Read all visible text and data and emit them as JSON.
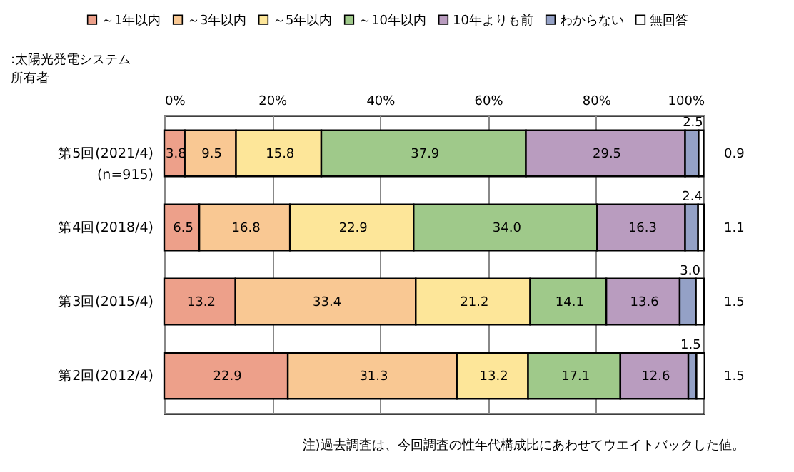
{
  "chart_data": {
    "type": "bar",
    "orientation": "horizontal",
    "stacked": true,
    "ylabel": ":太陽光発電システム所有者",
    "categories": [
      "第5回(2021/4)\n(n=915)",
      "第4回(2018/4)",
      "第3回(2015/4)",
      "第2回(2012/4)"
    ],
    "series": [
      {
        "name": "～1年以内",
        "color": "#eda08a",
        "values": [
          3.8,
          6.5,
          13.2,
          22.9
        ],
        "value_labels": [
          "3.8",
          "6.5",
          "13.2",
          "22.9"
        ]
      },
      {
        "name": "～3年以内",
        "color": "#f9c893",
        "values": [
          9.5,
          16.8,
          33.4,
          31.3
        ],
        "value_labels": [
          "9.5",
          "16.8",
          "33.4",
          "31.3"
        ]
      },
      {
        "name": "～5年以内",
        "color": "#fde699",
        "values": [
          15.8,
          22.9,
          21.2,
          13.2
        ],
        "value_labels": [
          "15.8",
          "22.9",
          "21.2",
          "13.2"
        ]
      },
      {
        "name": "～10年以内",
        "color": "#9fc98a",
        "values": [
          37.9,
          34.0,
          14.1,
          17.1
        ],
        "value_labels": [
          "37.9",
          "34.0",
          "14.1",
          "17.1"
        ]
      },
      {
        "name": "10年よりも前",
        "color": "#b99cbf",
        "values": [
          29.5,
          16.3,
          13.6,
          12.6
        ],
        "value_labels": [
          "29.5",
          "16.3",
          "13.6",
          "12.6"
        ]
      },
      {
        "name": "わからない",
        "color": "#94a1c6",
        "values": [
          2.5,
          2.4,
          3.0,
          1.5
        ],
        "value_labels": [
          "2.5",
          "2.4",
          "3.0",
          "1.5"
        ]
      },
      {
        "name": "無回答",
        "color": "#ffffff",
        "values": [
          0.9,
          1.1,
          1.5,
          1.5
        ],
        "value_labels": [
          "0.9",
          "1.1",
          "1.5",
          "1.5"
        ]
      }
    ],
    "xlim": [
      0,
      100
    ],
    "xticks": [
      {
        "value": 0,
        "label": "0%"
      },
      {
        "value": 20,
        "label": "20%"
      },
      {
        "value": 40,
        "label": "40%"
      },
      {
        "value": 60,
        "label": "60%"
      },
      {
        "value": 80,
        "label": "80%"
      },
      {
        "value": 100,
        "label": "100%"
      }
    ],
    "grid": "x",
    "legend": "top",
    "annotations": [
      "注)過去調査は、今回調査の性年代構成比にあわせてウエイトバックした値。"
    ]
  }
}
